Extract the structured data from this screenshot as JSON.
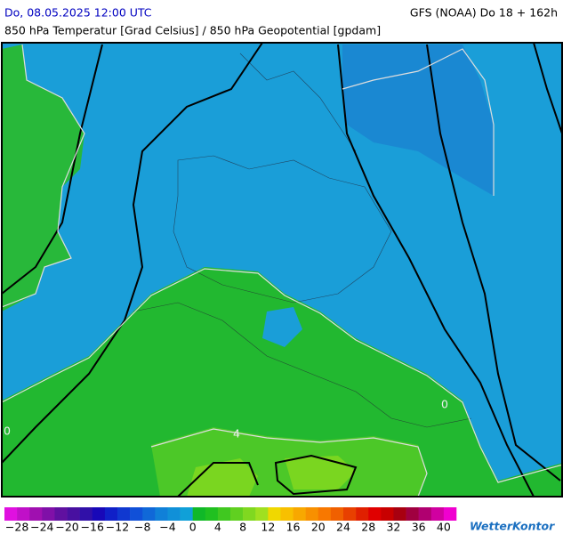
{
  "header": {
    "datetime": "Do, 08.05.2025 12:00 UTC",
    "model": "GFS (NOAA) Do 18 + 162h",
    "subtitle": "850 hPa Temperatur [Grad Celsius] / 850 hPa Geopotential [gpdam]"
  },
  "map": {
    "contour_labels": [
      "0",
      "4",
      "0"
    ]
  },
  "colorbar": {
    "colors": [
      "#e010e0",
      "#c010c8",
      "#a010b0",
      "#8010a8",
      "#6010a0",
      "#4810a0",
      "#3010a8",
      "#1808b8",
      "#1020c8",
      "#1038d0",
      "#1050d8",
      "#1068d8",
      "#1080d8",
      "#1090d8",
      "#10a0d8",
      "#10b828",
      "#20c020",
      "#40c820",
      "#60d020",
      "#80d820",
      "#a0e020",
      "#f0d800",
      "#f8c000",
      "#f8a800",
      "#f89000",
      "#f87800",
      "#f06000",
      "#e84000",
      "#e02000",
      "#e00000",
      "#c80000",
      "#a80010",
      "#a00040",
      "#b00070",
      "#d000a0",
      "#f000d0"
    ],
    "labels": [
      "−28",
      "−24",
      "−20",
      "−16",
      "−12",
      "−8",
      "−4",
      "0",
      "4",
      "8",
      "12",
      "16",
      "20",
      "24",
      "28",
      "32",
      "36",
      "40"
    ]
  },
  "brand": "WetterKontor"
}
